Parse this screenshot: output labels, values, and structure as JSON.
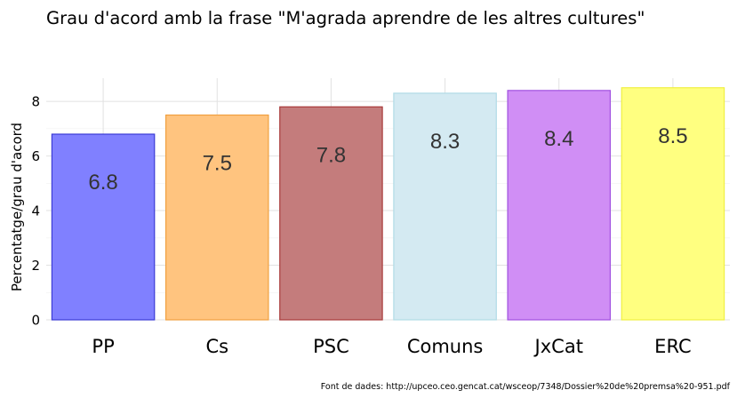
{
  "chart_data": {
    "type": "bar",
    "title": "Grau d'acord amb la frase \"M'agrada aprendre de les altres cultures\"",
    "ylabel": "Percentatge/grau d'acord",
    "xlabel": "",
    "categories": [
      "PP",
      "Cs",
      "PSC",
      "Comuns",
      "JxCat",
      "ERC"
    ],
    "values": [
      6.8,
      7.5,
      7.8,
      8.3,
      8.4,
      8.5
    ],
    "data_labels": [
      "6.8",
      "7.5",
      "7.8",
      "8.3",
      "8.4",
      "8.5"
    ],
    "colors": [
      {
        "fill": "#8080ff",
        "stroke": "#3a3ad6"
      },
      {
        "fill": "#ffc47f",
        "stroke": "#f0a040"
      },
      {
        "fill": "#c47c7c",
        "stroke": "#a83a3a"
      },
      {
        "fill": "#d4eaf2",
        "stroke": "#b0dbe6"
      },
      {
        "fill": "#d08ef5",
        "stroke": "#a050e0"
      },
      {
        "fill": "#ffff80",
        "stroke": "#f0f040"
      }
    ],
    "ylim": [
      0,
      8.85
    ],
    "yticks": [
      "0",
      "2",
      "4",
      "6",
      "8"
    ],
    "grid": true,
    "legend": "none",
    "caption": "Font de dades: http://upceo.ceo.gencat.cat/wsceop/7348/Dossier%20de%20premsa%20-951.pdf"
  }
}
